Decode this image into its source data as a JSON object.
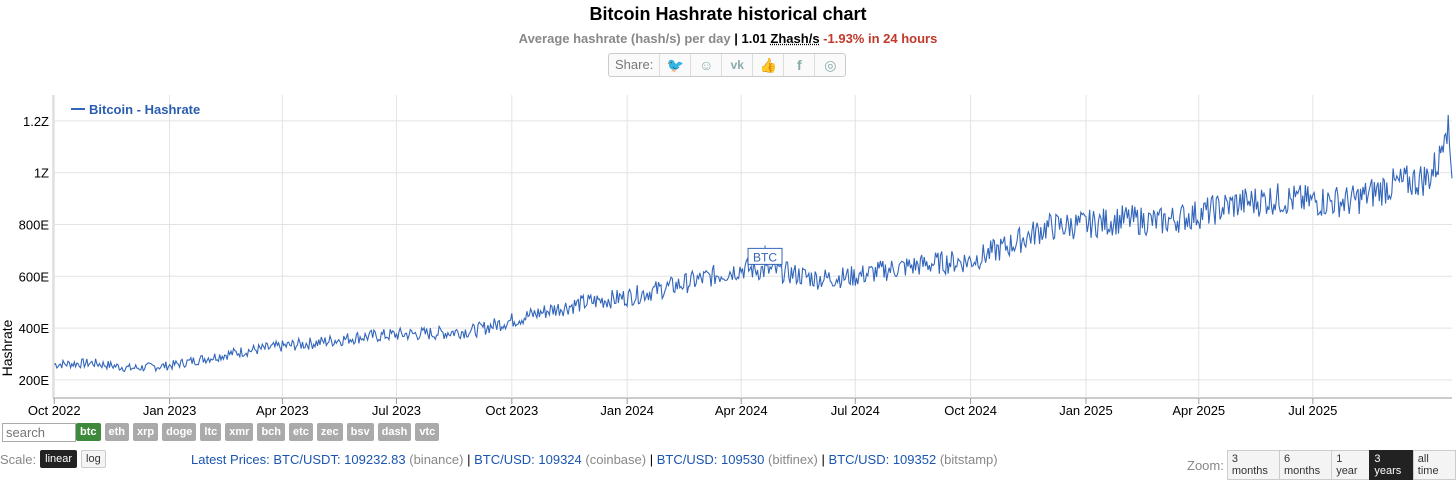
{
  "header": {
    "title": "Bitcoin Hashrate historical chart",
    "subtitle_label": "Average hashrate (hash/s) per day",
    "current_value": "1.01",
    "current_unit": "Zhash/s",
    "change": "-1.93% in 24 hours",
    "share_label": "Share:"
  },
  "share_icons": [
    "twitter-icon",
    "reddit-icon",
    "vk-icon",
    "like-icon",
    "facebook-icon",
    "weibo-icon"
  ],
  "search": {
    "placeholder": "search"
  },
  "coins": [
    "btc",
    "eth",
    "xrp",
    "doge",
    "ltc",
    "xmr",
    "bch",
    "etc",
    "zec",
    "bsv",
    "dash",
    "vtc"
  ],
  "active_coin": "btc",
  "scale": {
    "label": "Scale:",
    "options": [
      "linear",
      "log"
    ],
    "selected": "linear"
  },
  "prices": {
    "label": "Latest Prices:",
    "items": [
      {
        "pair": "BTC/USDT: 109232.83",
        "exchange": "(binance)"
      },
      {
        "pair": "BTC/USD: 109324",
        "exchange": "(coinbase)"
      },
      {
        "pair": "BTC/USD: 109530",
        "exchange": "(bitfinex)"
      },
      {
        "pair": "BTC/USD: 109352",
        "exchange": "(bitstamp)"
      }
    ]
  },
  "zoom": {
    "label": "Zoom:",
    "options": [
      "3 months",
      "6 months",
      "1 year",
      "3 years",
      "all time"
    ],
    "selected": "3 years"
  },
  "colors": {
    "series": "#3366bb",
    "grid": "#e3e3e3",
    "active_coin": "#3d8a3d",
    "negative": "#c0392b"
  },
  "chart_data": {
    "type": "line",
    "ylabel": "Hashrate",
    "ylim": [
      130,
      1300
    ],
    "yunit": "Ehash/s",
    "yticks": [
      200,
      400,
      600,
      800,
      1000,
      1200
    ],
    "ytick_labels": [
      "200E",
      "400E",
      "600E",
      "800E",
      "1Z",
      "1.2Z"
    ],
    "xticks": [
      "Oct 2022",
      "Jan 2023",
      "Apr 2023",
      "Jul 2023",
      "Oct 2023",
      "Jan 2024",
      "Apr 2024",
      "Jul 2024",
      "Oct 2024",
      "Jan 2025",
      "Apr 2025",
      "Jul 2025"
    ],
    "xrange": [
      "2022-09-30",
      "2025-10-20"
    ],
    "legend": "top-left",
    "grid": true,
    "annotation": {
      "text": "BTC",
      "date": "2024-04-20"
    },
    "series": [
      {
        "name": "Bitcoin - Hashrate",
        "x": [
          "2022-10-01",
          "2022-11-01",
          "2022-12-01",
          "2023-01-01",
          "2023-02-01",
          "2023-03-01",
          "2023-04-01",
          "2023-05-01",
          "2023-06-01",
          "2023-07-01",
          "2023-08-01",
          "2023-09-01",
          "2023-10-01",
          "2023-11-01",
          "2023-12-01",
          "2024-01-01",
          "2024-02-01",
          "2024-03-01",
          "2024-04-01",
          "2024-05-01",
          "2024-06-01",
          "2024-07-01",
          "2024-08-01",
          "2024-09-01",
          "2024-10-01",
          "2024-11-01",
          "2024-12-01",
          "2025-01-01",
          "2025-02-01",
          "2025-03-01",
          "2025-04-01",
          "2025-05-01",
          "2025-06-01",
          "2025-07-01",
          "2025-08-01",
          "2025-09-01",
          "2025-10-01",
          "2025-10-10",
          "2025-10-15",
          "2025-10-20"
        ],
        "y": [
          260,
          265,
          245,
          255,
          285,
          310,
          330,
          345,
          365,
          375,
          380,
          390,
          430,
          470,
          500,
          520,
          555,
          590,
          630,
          620,
          590,
          600,
          630,
          650,
          660,
          720,
          790,
          800,
          820,
          810,
          840,
          880,
          900,
          890,
          890,
          950,
          980,
          1050,
          1230,
          1020
        ]
      }
    ]
  }
}
